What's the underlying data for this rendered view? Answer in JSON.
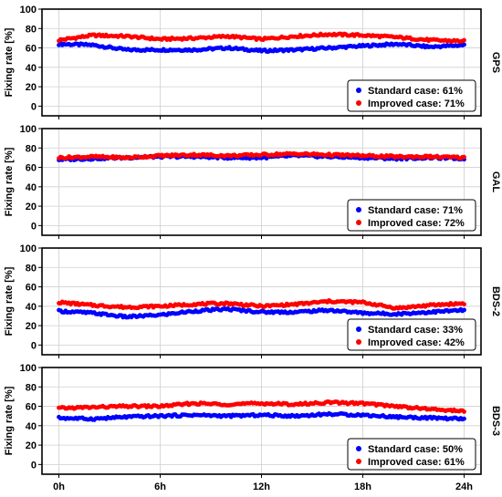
{
  "chart_data": [
    {
      "type": "scatter",
      "system": "GPS",
      "ylabel": "Fixing rate [%]",
      "ylim": [
        -10,
        100
      ],
      "yticks": [
        "0",
        "20",
        "40",
        "60",
        "80",
        "100"
      ],
      "xlim": [
        -1,
        25
      ],
      "xticks": [
        "0h",
        "6h",
        "12h",
        "18h",
        "24h"
      ],
      "grid": true,
      "legend_position": "bottom-right",
      "x": [
        0,
        2,
        4,
        6,
        8,
        10,
        12,
        14,
        16,
        18,
        20,
        22,
        24
      ],
      "series": [
        {
          "name": "Standard case: 61%",
          "color": "#0000ff",
          "values": [
            64,
            63,
            58,
            58,
            58,
            60,
            57,
            58,
            60,
            62,
            64,
            61,
            63
          ]
        },
        {
          "name": "Improved case: 71%",
          "color": "#ff0000",
          "values": [
            68,
            73,
            72,
            69,
            70,
            72,
            69,
            72,
            74,
            73,
            71,
            68,
            67
          ]
        }
      ]
    },
    {
      "type": "scatter",
      "system": "GAL",
      "ylabel": "Fixing rate [%]",
      "ylim": [
        -10,
        100
      ],
      "yticks": [
        "0",
        "20",
        "40",
        "60",
        "80",
        "100"
      ],
      "xlim": [
        -1,
        25
      ],
      "xticks": [
        "0h",
        "6h",
        "12h",
        "18h",
        "24h"
      ],
      "grid": true,
      "legend_position": "bottom-right",
      "x": [
        0,
        2,
        4,
        6,
        8,
        10,
        12,
        14,
        16,
        18,
        20,
        22,
        24
      ],
      "series": [
        {
          "name": "Standard case: 71%",
          "color": "#0000ff",
          "values": [
            68,
            69,
            70,
            71,
            71,
            70,
            70,
            72,
            71,
            70,
            69,
            70,
            69
          ]
        },
        {
          "name": "Improved case: 72%",
          "color": "#ff0000",
          "values": [
            70,
            71,
            70,
            72,
            73,
            72,
            73,
            74,
            73,
            72,
            71,
            71,
            70
          ]
        }
      ]
    },
    {
      "type": "scatter",
      "system": "BDS-2",
      "ylabel": "Fixing rate [%]",
      "ylim": [
        -10,
        100
      ],
      "yticks": [
        "0",
        "20",
        "40",
        "60",
        "80",
        "100"
      ],
      "xlim": [
        -1,
        25
      ],
      "xticks": [
        "0h",
        "6h",
        "12h",
        "18h",
        "24h"
      ],
      "grid": true,
      "legend_position": "bottom-right",
      "x": [
        0,
        2,
        4,
        6,
        8,
        10,
        12,
        14,
        16,
        18,
        20,
        22,
        24
      ],
      "series": [
        {
          "name": "Standard case: 33%",
          "color": "#0000ff",
          "values": [
            35,
            33,
            29,
            31,
            35,
            37,
            34,
            34,
            36,
            33,
            32,
            34,
            36
          ]
        },
        {
          "name": "Improved case: 42%",
          "color": "#ff0000",
          "values": [
            44,
            41,
            39,
            40,
            42,
            43,
            40,
            42,
            45,
            44,
            38,
            41,
            43
          ]
        }
      ]
    },
    {
      "type": "scatter",
      "system": "BDS-3",
      "ylabel": "Fixing rate [%]",
      "ylim": [
        -10,
        100
      ],
      "yticks": [
        "0",
        "20",
        "40",
        "60",
        "80",
        "100"
      ],
      "xlim": [
        -1,
        25
      ],
      "xticks": [
        "0h",
        "6h",
        "12h",
        "18h",
        "24h"
      ],
      "grid": true,
      "legend_position": "bottom-right",
      "x": [
        0,
        2,
        4,
        6,
        8,
        10,
        12,
        14,
        16,
        18,
        20,
        22,
        24
      ],
      "series": [
        {
          "name": "Standard case: 50%",
          "color": "#0000ff",
          "values": [
            48,
            47,
            49,
            50,
            51,
            50,
            51,
            50,
            52,
            51,
            49,
            48,
            47
          ]
        },
        {
          "name": "Improved case: 61%",
          "color": "#ff0000",
          "values": [
            58,
            59,
            60,
            60,
            63,
            62,
            63,
            62,
            64,
            63,
            60,
            57,
            55
          ]
        }
      ]
    }
  ]
}
